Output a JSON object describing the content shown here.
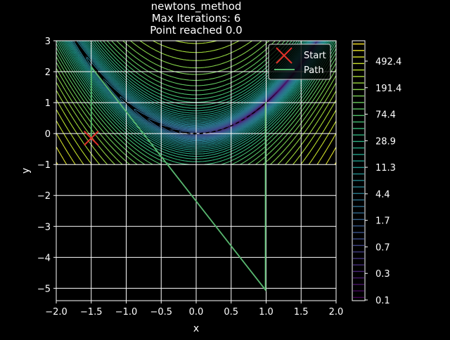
{
  "chart_data": {
    "type": "line",
    "title_lines": [
      "newtons_method",
      "Max Iterations: 6",
      "Point reached 0.0"
    ],
    "xlabel": "x",
    "ylabel": "y",
    "xlim": [
      -2.0,
      2.0
    ],
    "ylim": [
      -5.4,
      3.0
    ],
    "x_ticks": [
      -2.0,
      -1.5,
      -1.0,
      -0.5,
      0.0,
      0.5,
      1.0,
      1.5,
      2.0
    ],
    "x_tick_labels": [
      "−2.0",
      "−1.5",
      "−1.0",
      "−0.5",
      "0.0",
      "0.5",
      "1.0",
      "1.5",
      "2.0"
    ],
    "y_ticks": [
      3,
      2,
      1,
      0,
      -1,
      -2,
      -3,
      -4,
      -5
    ],
    "y_tick_labels": [
      "3",
      "2",
      "1",
      "0",
      "−1",
      "−2",
      "−3",
      "−4",
      "−5"
    ],
    "grid": true,
    "contour": {
      "function": "rosenbrock",
      "x_range": [
        -2.0,
        2.0
      ],
      "y_range": [
        -1.0,
        3.0
      ],
      "colormap": "viridis",
      "scale": "log"
    },
    "colorbar_labels": [
      "492.4",
      "191.4",
      "74.4",
      "28.9",
      "11.3",
      "4.4",
      "1.7",
      "0.7",
      "0.3",
      "0.1"
    ],
    "start": {
      "label": "Start",
      "x": -1.5,
      "y": -0.15,
      "color": "#e0322a"
    },
    "path": {
      "label": "Path",
      "color": "#59b870",
      "x": [
        -1.5,
        -1.5,
        0.99,
        0.99,
        1.0,
        1.0
      ],
      "y": [
        -0.15,
        2.15,
        -5.05,
        0.95,
        1.0,
        1.0
      ]
    },
    "legend_position": "top-right"
  }
}
